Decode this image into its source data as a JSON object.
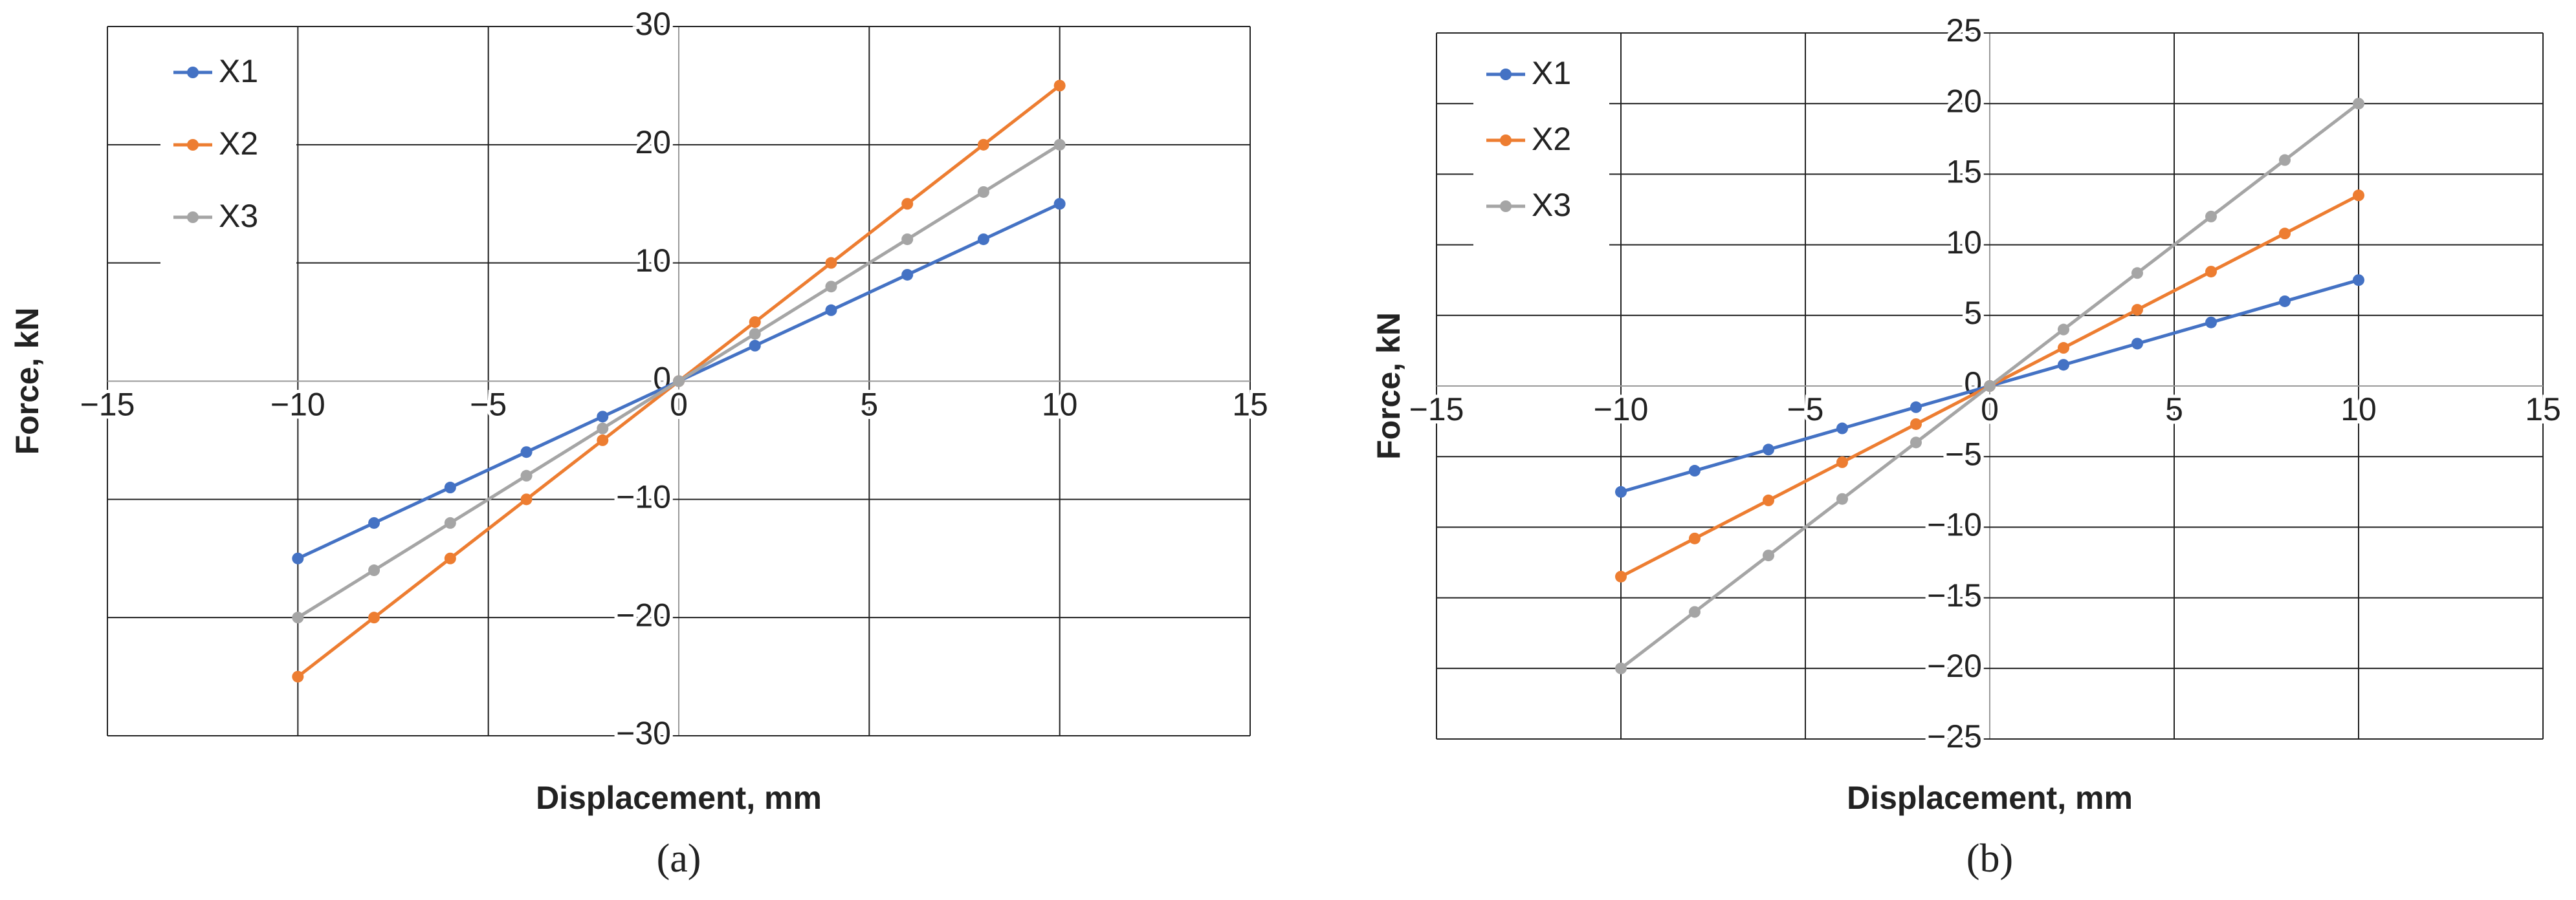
{
  "chart_data": [
    {
      "type": "line",
      "caption": "(a)",
      "x_label": "Displacement, mm",
      "y_label": "Force, kN",
      "xlim": [
        -15,
        15
      ],
      "xticks": [
        {
          "value": -15,
          "label": "−15"
        },
        {
          "value": -10,
          "label": "−10"
        },
        {
          "value": -5,
          "label": "−5"
        },
        0,
        5,
        10,
        15
      ],
      "ylim": [
        -30,
        30
      ],
      "yticks": [
        {
          "value": -30,
          "label": "−30"
        },
        {
          "value": -20,
          "label": "−20"
        },
        {
          "value": -10,
          "label": "−10"
        },
        0,
        10,
        20,
        30
      ],
      "grid": true,
      "legend": "upper left",
      "x": [
        -10,
        -8,
        -6,
        -4,
        -2,
        0,
        2,
        4,
        6,
        8,
        10
      ],
      "series": [
        {
          "name": "X1",
          "color": "#4472c4",
          "values": [
            -15,
            -12,
            -9,
            -6,
            -3,
            0,
            3,
            6,
            9,
            12,
            15
          ]
        },
        {
          "name": "X2",
          "color": "#ed7d31",
          "values": [
            -25,
            -20,
            -15,
            -10,
            -5,
            0,
            5,
            10,
            15,
            20,
            25
          ]
        },
        {
          "name": "X3",
          "color": "#a5a5a5",
          "values": [
            -20,
            -16,
            -12,
            -8,
            -4,
            0,
            4,
            8,
            12,
            16,
            20
          ]
        }
      ]
    },
    {
      "type": "line",
      "caption": "(b)",
      "x_label": "Displacement, mm",
      "y_label": "Force, kN",
      "xlim": [
        -15,
        15
      ],
      "xticks": [
        {
          "value": -15,
          "label": "−15"
        },
        {
          "value": -10,
          "label": "−10"
        },
        {
          "value": -5,
          "label": "−5"
        },
        0,
        5,
        10,
        15
      ],
      "ylim": [
        -25,
        25
      ],
      "yticks": [
        {
          "value": -25,
          "label": "−25"
        },
        {
          "value": -20,
          "label": "−20"
        },
        {
          "value": -15,
          "label": "−15"
        },
        {
          "value": -10,
          "label": "−10"
        },
        {
          "value": -5,
          "label": "−5"
        },
        0,
        5,
        10,
        15,
        20,
        25
      ],
      "grid": true,
      "legend": "upper left",
      "x": [
        -10,
        -8,
        -6,
        -4,
        -2,
        0,
        2,
        4,
        6,
        8,
        10
      ],
      "series": [
        {
          "name": "X1",
          "color": "#4472c4",
          "values": [
            -7.5,
            -6,
            -4.5,
            -3,
            -1.5,
            0,
            1.5,
            3,
            4.5,
            6,
            7.5
          ]
        },
        {
          "name": "X2",
          "color": "#ed7d31",
          "values": [
            -13.5,
            -10.8,
            -8.1,
            -5.4,
            -2.7,
            0,
            2.7,
            5.4,
            8.1,
            10.8,
            13.5
          ]
        },
        {
          "name": "X3",
          "color": "#a5a5a5",
          "values": [
            -20,
            -16,
            -12,
            -8,
            -4,
            0,
            4,
            8,
            12,
            16,
            20
          ]
        }
      ]
    }
  ]
}
